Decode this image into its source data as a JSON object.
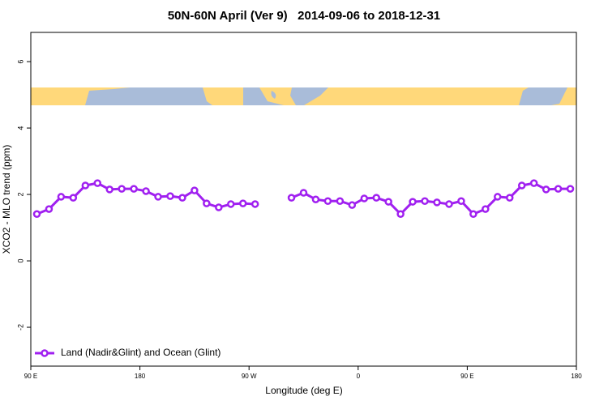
{
  "chart_data": {
    "type": "line",
    "title": "50N-60N April (Ver 9)   2014-09-06 to 2018-12-31",
    "x_label": "Longitude (deg E)",
    "y_label": "XCO2 - MLO trend (ppm)",
    "x": [
      95,
      105,
      115,
      125,
      135,
      145,
      155,
      165,
      175,
      185,
      195,
      205,
      215,
      225,
      235,
      245,
      255,
      265,
      275,
      285,
      295,
      305,
      315,
      325,
      335,
      345,
      355,
      365,
      375,
      385,
      395,
      405,
      415,
      425,
      435,
      445,
      455,
      465,
      475,
      485,
      495,
      505,
      515,
      525,
      535
    ],
    "series": [
      {
        "name": "Land (Nadir&Glint) and Ocean (Glint)",
        "color": "#a020f0",
        "values": [
          1.41,
          1.56,
          1.93,
          1.9,
          2.27,
          2.34,
          2.15,
          2.17,
          2.17,
          2.1,
          1.93,
          1.95,
          1.9,
          2.12,
          1.73,
          1.61,
          1.71,
          1.73,
          1.71,
          null,
          null,
          1.9,
          2.05,
          1.85,
          1.8,
          1.8,
          1.68,
          1.88,
          1.9,
          1.78,
          1.41,
          1.78,
          1.8,
          1.76,
          1.71,
          1.8,
          1.41,
          1.56,
          1.93,
          1.9,
          2.27,
          2.34,
          2.15,
          2.17,
          2.17
        ]
      }
    ],
    "xlim": [
      90,
      540
    ],
    "xticks": [
      {
        "value": 90,
        "label": "90 E"
      },
      {
        "value": 180,
        "label": "180"
      },
      {
        "value": 270,
        "label": "90 W"
      },
      {
        "value": 360,
        "label": "0"
      },
      {
        "value": 450,
        "label": "90 E"
      },
      {
        "value": 540,
        "label": "180"
      }
    ],
    "ylim": [
      -3.17,
      6.88
    ],
    "yticks": [
      -2,
      0,
      2,
      4,
      6
    ],
    "legend": "bottom-left"
  }
}
